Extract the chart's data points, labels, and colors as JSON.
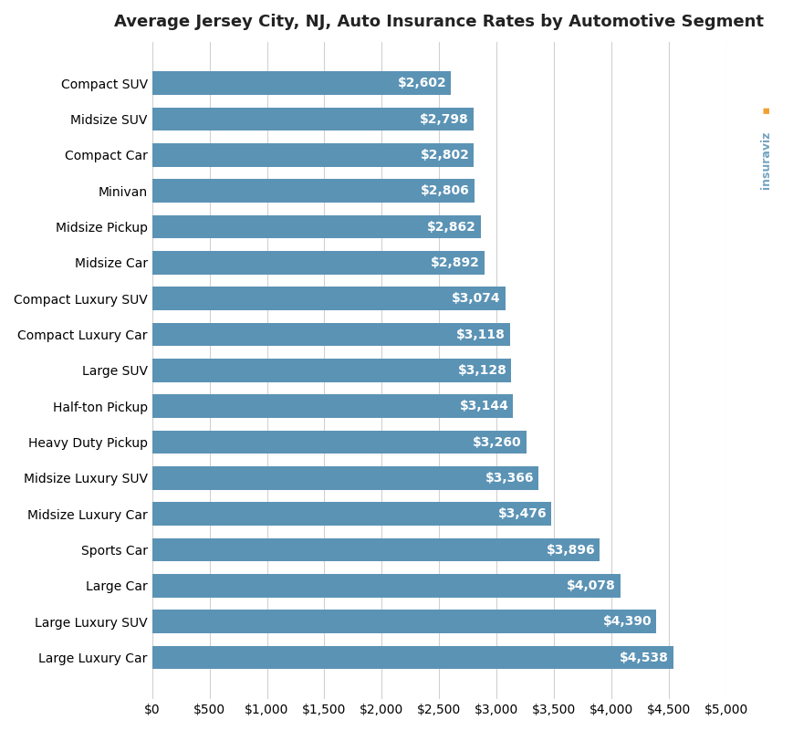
{
  "title": "Average Jersey City, NJ, Auto Insurance Rates by Automotive Segment",
  "categories": [
    "Compact SUV",
    "Midsize SUV",
    "Compact Car",
    "Minivan",
    "Midsize Pickup",
    "Midsize Car",
    "Compact Luxury SUV",
    "Compact Luxury Car",
    "Large SUV",
    "Half-ton Pickup",
    "Heavy Duty Pickup",
    "Midsize Luxury SUV",
    "Midsize Luxury Car",
    "Sports Car",
    "Large Car",
    "Large Luxury SUV",
    "Large Luxury Car"
  ],
  "values": [
    2602,
    2798,
    2802,
    2806,
    2862,
    2892,
    3074,
    3118,
    3128,
    3144,
    3260,
    3366,
    3476,
    3896,
    4078,
    4390,
    4538
  ],
  "bar_color": "#5b93b5",
  "label_color": "#ffffff",
  "background_color": "#ffffff",
  "grid_color": "#d0d0d0",
  "title_fontsize": 13,
  "label_fontsize": 10,
  "tick_fontsize": 10,
  "xlim": [
    0,
    5000
  ],
  "xticks": [
    0,
    500,
    1000,
    1500,
    2000,
    2500,
    3000,
    3500,
    4000,
    4500,
    5000
  ],
  "watermark_text": "insuraviz",
  "watermark_color": "#5b93b5",
  "watermark_dot_color": "#f0a030"
}
